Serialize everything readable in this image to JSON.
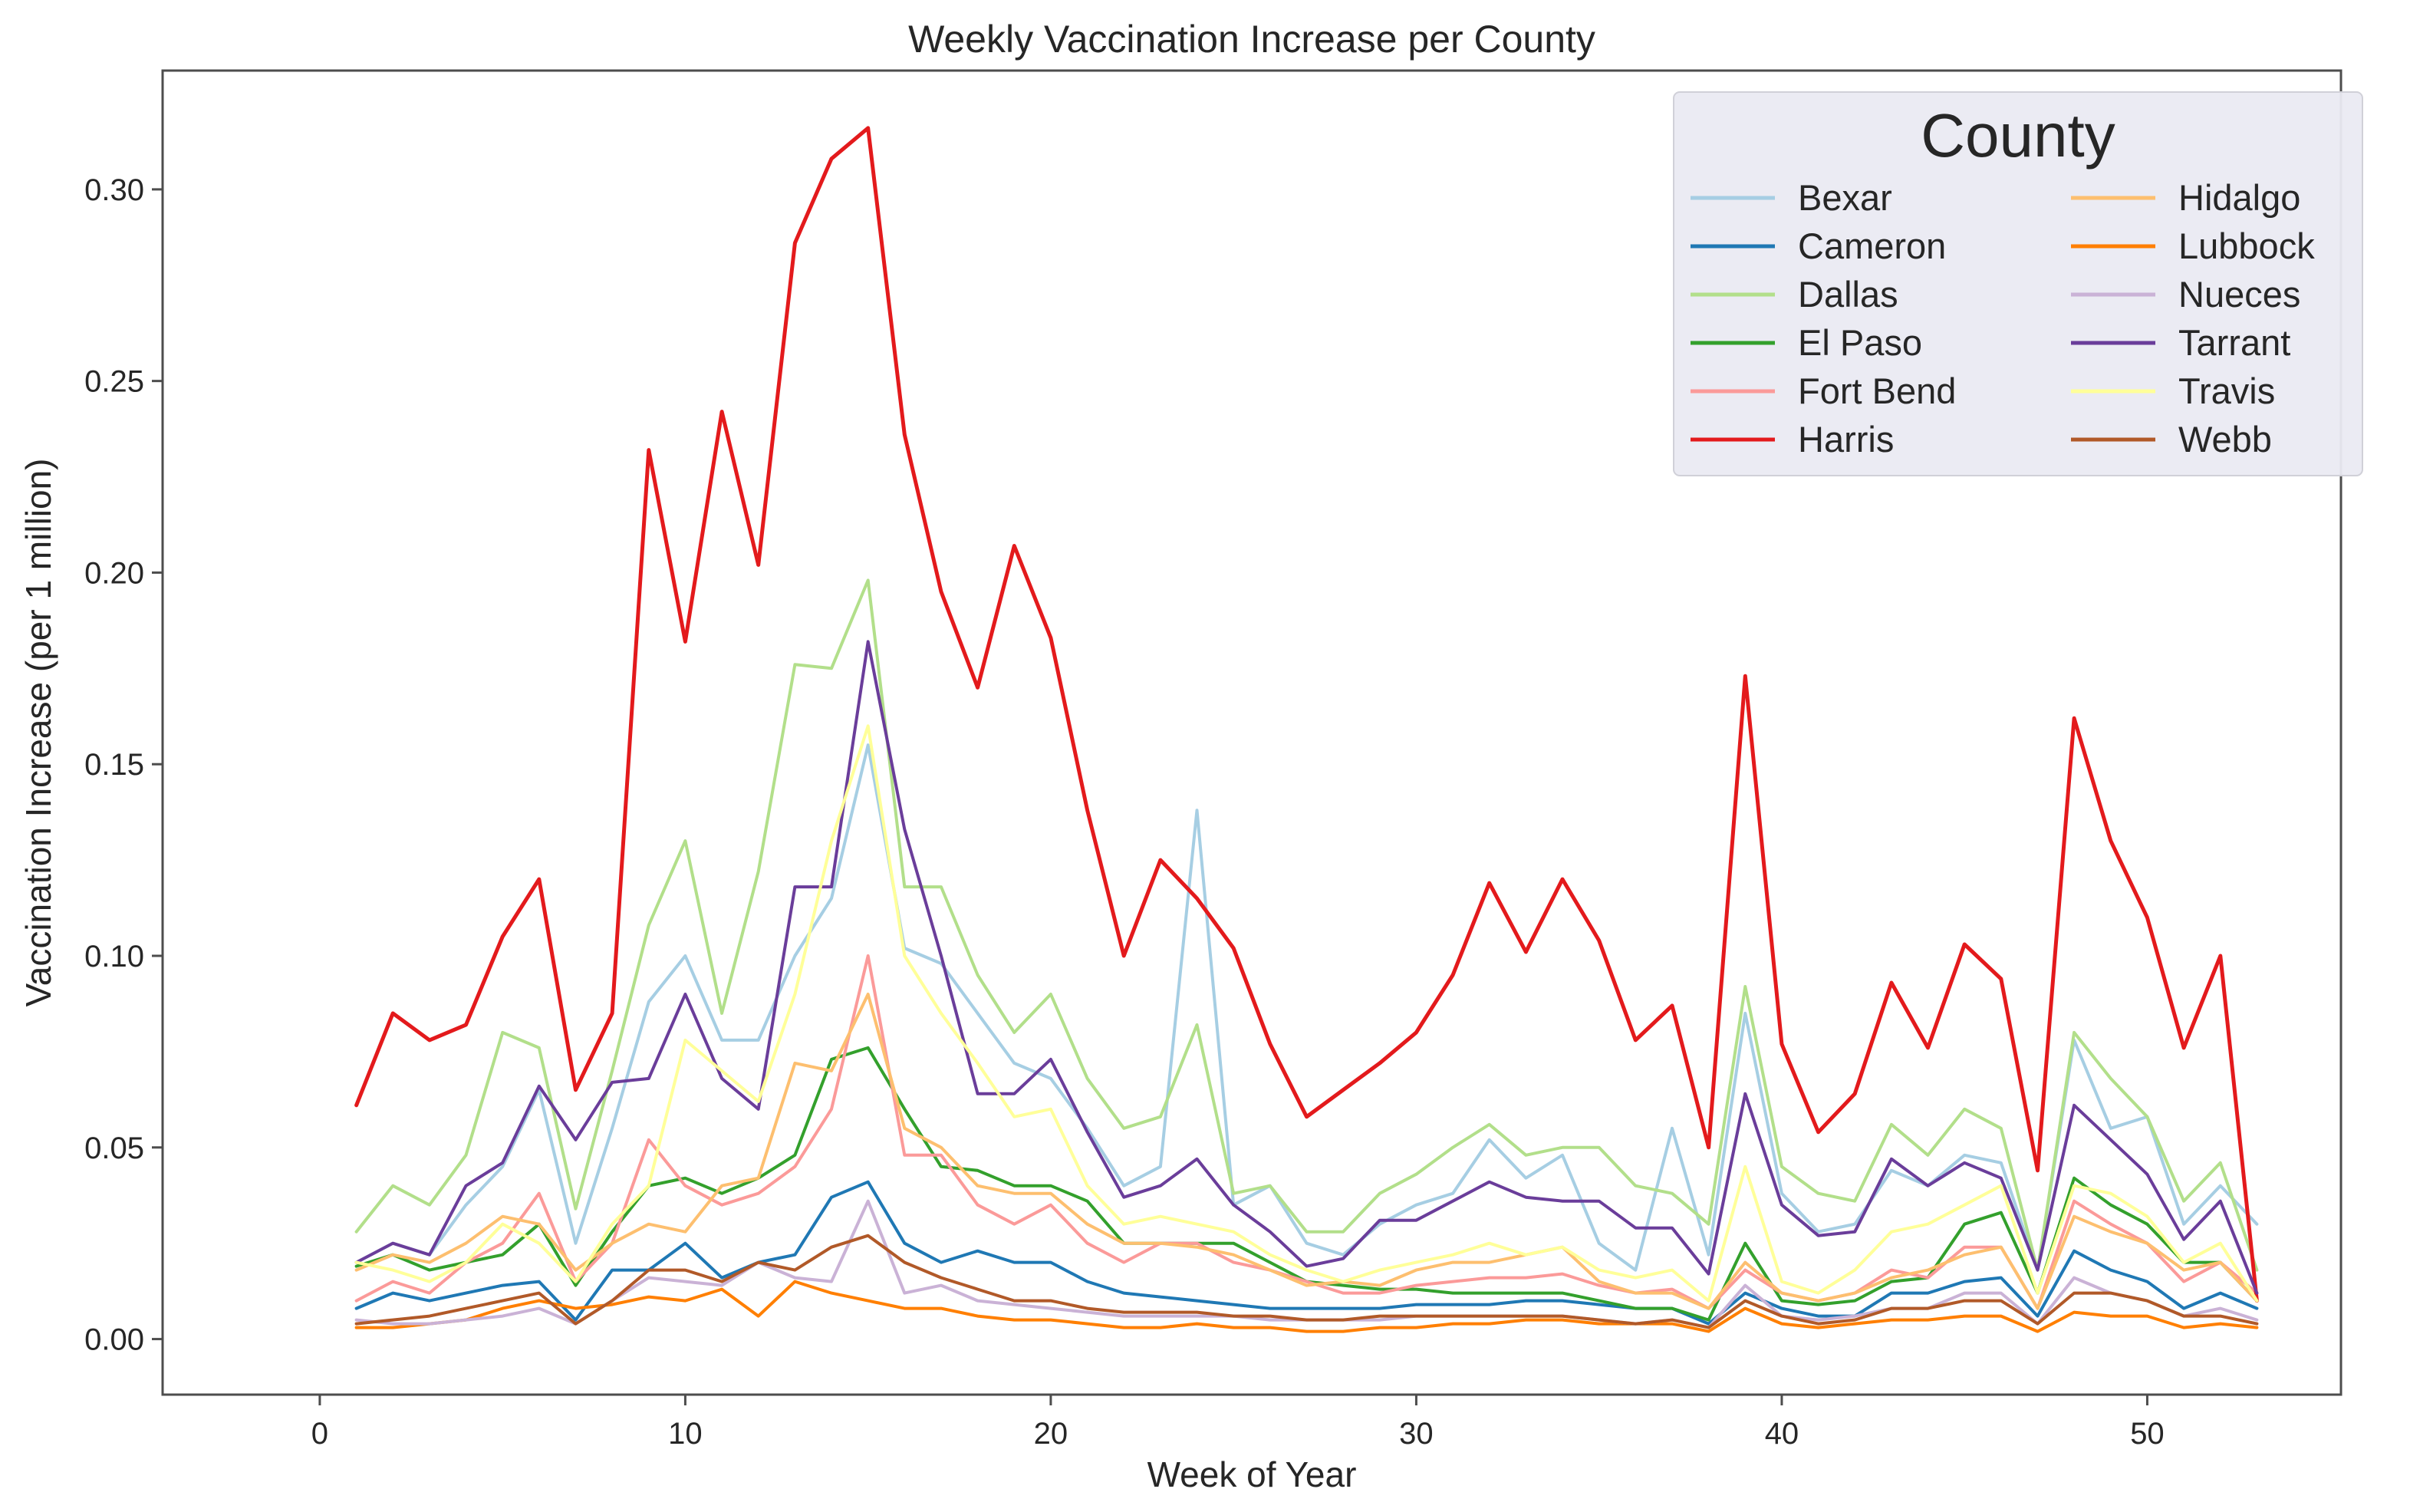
{
  "chart_data": {
    "type": "line",
    "title": "Weekly Vaccination Increase per County",
    "xlabel": "Week of Year",
    "ylabel": "Vaccination Increase (per 1 million)",
    "xlim": [
      -4.3,
      55.3
    ],
    "ylim": [
      -0.0145,
      0.331
    ],
    "xticks": [
      0,
      10,
      20,
      30,
      40,
      50
    ],
    "xtick_labels": [
      "0",
      "10",
      "20",
      "30",
      "40",
      "50"
    ],
    "yticks": [
      0,
      0.05,
      0.1,
      0.15,
      0.2,
      0.25,
      0.3
    ],
    "ytick_labels": [
      "0.00",
      "0.05",
      "0.10",
      "0.15",
      "0.20",
      "0.25",
      "0.30"
    ],
    "grid": false,
    "legend": {
      "title": "County",
      "position": "top-right",
      "columns": 2
    },
    "x": [
      1,
      2,
      3,
      4,
      5,
      6,
      7,
      8,
      9,
      10,
      11,
      12,
      13,
      14,
      15,
      16,
      17,
      18,
      19,
      20,
      21,
      22,
      23,
      24,
      25,
      26,
      27,
      28,
      29,
      30,
      31,
      32,
      33,
      34,
      35,
      36,
      37,
      38,
      39,
      40,
      41,
      42,
      43,
      44,
      45,
      46,
      47,
      48,
      49,
      50,
      51,
      52,
      53
    ],
    "series": [
      {
        "name": "Bexar",
        "color": "#a6cee3",
        "values": [
          0.02,
          0.025,
          0.022,
          0.035,
          0.045,
          0.065,
          0.025,
          0.055,
          0.088,
          0.1,
          0.078,
          0.078,
          0.1,
          0.115,
          0.155,
          0.102,
          0.098,
          0.085,
          0.072,
          0.068,
          0.055,
          0.04,
          0.045,
          0.138,
          0.035,
          0.04,
          0.025,
          0.022,
          0.03,
          0.035,
          0.038,
          0.052,
          0.042,
          0.048,
          0.025,
          0.018,
          0.055,
          0.022,
          0.085,
          0.038,
          0.028,
          0.03,
          0.044,
          0.04,
          0.048,
          0.046,
          0.018,
          0.078,
          0.055,
          0.058,
          0.03,
          0.04,
          0.03
        ]
      },
      {
        "name": "Cameron",
        "color": "#1f78b4",
        "values": [
          0.008,
          0.012,
          0.01,
          0.012,
          0.014,
          0.015,
          0.005,
          0.018,
          0.018,
          0.025,
          0.016,
          0.02,
          0.022,
          0.037,
          0.041,
          0.025,
          0.02,
          0.023,
          0.02,
          0.02,
          0.015,
          0.012,
          0.011,
          0.01,
          0.009,
          0.008,
          0.008,
          0.008,
          0.008,
          0.009,
          0.009,
          0.009,
          0.01,
          0.01,
          0.009,
          0.008,
          0.008,
          0.004,
          0.012,
          0.008,
          0.006,
          0.006,
          0.012,
          0.012,
          0.015,
          0.016,
          0.006,
          0.023,
          0.018,
          0.015,
          0.008,
          0.012,
          0.008
        ]
      },
      {
        "name": "Dallas",
        "color": "#b2df8a",
        "values": [
          0.028,
          0.04,
          0.035,
          0.048,
          0.08,
          0.076,
          0.034,
          0.07,
          0.108,
          0.13,
          0.085,
          0.122,
          0.176,
          0.175,
          0.198,
          0.118,
          0.118,
          0.095,
          0.08,
          0.09,
          0.068,
          0.055,
          0.058,
          0.082,
          0.038,
          0.04,
          0.028,
          0.028,
          0.038,
          0.043,
          0.05,
          0.056,
          0.048,
          0.05,
          0.05,
          0.04,
          0.038,
          0.03,
          0.092,
          0.045,
          0.038,
          0.036,
          0.056,
          0.048,
          0.06,
          0.055,
          0.018,
          0.08,
          0.068,
          0.058,
          0.036,
          0.046,
          0.018
        ]
      },
      {
        "name": "El Paso",
        "color": "#33a02c",
        "values": [
          0.019,
          0.022,
          0.018,
          0.02,
          0.022,
          0.03,
          0.014,
          0.028,
          0.04,
          0.042,
          0.038,
          0.042,
          0.048,
          0.073,
          0.076,
          0.06,
          0.045,
          0.044,
          0.04,
          0.04,
          0.036,
          0.025,
          0.025,
          0.025,
          0.025,
          0.02,
          0.015,
          0.014,
          0.013,
          0.013,
          0.012,
          0.012,
          0.012,
          0.012,
          0.01,
          0.008,
          0.008,
          0.005,
          0.025,
          0.01,
          0.009,
          0.01,
          0.015,
          0.016,
          0.03,
          0.033,
          0.012,
          0.042,
          0.035,
          0.03,
          0.02,
          0.02,
          0.01
        ]
      },
      {
        "name": "Fort Bend",
        "color": "#fb9a99",
        "values": [
          0.01,
          0.015,
          0.012,
          0.02,
          0.025,
          0.038,
          0.015,
          0.025,
          0.052,
          0.04,
          0.035,
          0.038,
          0.045,
          0.06,
          0.1,
          0.048,
          0.048,
          0.035,
          0.03,
          0.035,
          0.025,
          0.02,
          0.025,
          0.025,
          0.02,
          0.018,
          0.015,
          0.012,
          0.012,
          0.014,
          0.015,
          0.016,
          0.016,
          0.017,
          0.014,
          0.012,
          0.013,
          0.008,
          0.018,
          0.012,
          0.01,
          0.012,
          0.018,
          0.016,
          0.024,
          0.024,
          0.008,
          0.036,
          0.03,
          0.025,
          0.015,
          0.02,
          0.012
        ]
      },
      {
        "name": "Harris",
        "color": "#e31a1c",
        "values": [
          0.061,
          0.085,
          0.078,
          0.082,
          0.105,
          0.12,
          0.065,
          0.085,
          0.232,
          0.182,
          0.242,
          0.202,
          0.286,
          0.308,
          0.316,
          0.236,
          0.195,
          0.17,
          0.207,
          0.183,
          0.138,
          0.1,
          0.125,
          0.115,
          0.102,
          0.077,
          0.058,
          0.065,
          0.072,
          0.08,
          0.095,
          0.119,
          0.101,
          0.12,
          0.104,
          0.078,
          0.087,
          0.05,
          0.173,
          0.077,
          0.054,
          0.064,
          0.093,
          0.076,
          0.103,
          0.094,
          0.044,
          0.162,
          0.13,
          0.11,
          0.076,
          0.1,
          0.01
        ]
      },
      {
        "name": "Hidalgo",
        "color": "#fdbf6f",
        "values": [
          0.018,
          0.022,
          0.02,
          0.025,
          0.032,
          0.03,
          0.018,
          0.025,
          0.03,
          0.028,
          0.04,
          0.042,
          0.072,
          0.07,
          0.09,
          0.055,
          0.05,
          0.04,
          0.038,
          0.038,
          0.03,
          0.025,
          0.025,
          0.024,
          0.022,
          0.018,
          0.014,
          0.015,
          0.014,
          0.018,
          0.02,
          0.02,
          0.022,
          0.024,
          0.015,
          0.012,
          0.012,
          0.008,
          0.02,
          0.012,
          0.01,
          0.012,
          0.016,
          0.018,
          0.022,
          0.024,
          0.008,
          0.032,
          0.028,
          0.025,
          0.018,
          0.02,
          0.01
        ]
      },
      {
        "name": "Lubbock",
        "color": "#ff7f00",
        "values": [
          0.003,
          0.003,
          0.004,
          0.005,
          0.008,
          0.01,
          0.008,
          0.009,
          0.011,
          0.01,
          0.013,
          0.006,
          0.015,
          0.012,
          0.01,
          0.008,
          0.008,
          0.006,
          0.005,
          0.005,
          0.004,
          0.003,
          0.003,
          0.004,
          0.003,
          0.003,
          0.002,
          0.002,
          0.003,
          0.003,
          0.004,
          0.004,
          0.005,
          0.005,
          0.004,
          0.004,
          0.004,
          0.002,
          0.008,
          0.004,
          0.003,
          0.004,
          0.005,
          0.005,
          0.006,
          0.006,
          0.002,
          0.007,
          0.006,
          0.006,
          0.003,
          0.004,
          0.003
        ]
      },
      {
        "name": "Nueces",
        "color": "#cab2d6",
        "values": [
          0.005,
          0.004,
          0.004,
          0.005,
          0.006,
          0.008,
          0.004,
          0.01,
          0.016,
          0.015,
          0.014,
          0.02,
          0.016,
          0.015,
          0.036,
          0.012,
          0.014,
          0.01,
          0.009,
          0.008,
          0.007,
          0.006,
          0.006,
          0.006,
          0.006,
          0.005,
          0.005,
          0.005,
          0.005,
          0.006,
          0.006,
          0.006,
          0.006,
          0.006,
          0.005,
          0.004,
          0.005,
          0.003,
          0.014,
          0.006,
          0.005,
          0.006,
          0.008,
          0.008,
          0.012,
          0.012,
          0.004,
          0.016,
          0.012,
          0.01,
          0.006,
          0.008,
          0.005
        ]
      },
      {
        "name": "Tarrant",
        "color": "#6a3d9a",
        "values": [
          0.02,
          0.025,
          0.022,
          0.04,
          0.046,
          0.066,
          0.052,
          0.067,
          0.068,
          0.09,
          0.068,
          0.06,
          0.118,
          0.118,
          0.182,
          0.133,
          0.1,
          0.064,
          0.064,
          0.073,
          0.054,
          0.037,
          0.04,
          0.047,
          0.035,
          0.028,
          0.019,
          0.021,
          0.031,
          0.031,
          0.036,
          0.041,
          0.037,
          0.036,
          0.036,
          0.029,
          0.029,
          0.017,
          0.064,
          0.035,
          0.027,
          0.028,
          0.047,
          0.04,
          0.046,
          0.042,
          0.018,
          0.061,
          0.052,
          0.043,
          0.026,
          0.036,
          0.012
        ]
      },
      {
        "name": "Travis",
        "color": "#ffff99",
        "values": [
          0.02,
          0.018,
          0.015,
          0.02,
          0.03,
          0.025,
          0.015,
          0.03,
          0.04,
          0.078,
          0.07,
          0.062,
          0.09,
          0.13,
          0.16,
          0.1,
          0.085,
          0.072,
          0.058,
          0.06,
          0.04,
          0.03,
          0.032,
          0.03,
          0.028,
          0.022,
          0.018,
          0.015,
          0.018,
          0.02,
          0.022,
          0.025,
          0.022,
          0.024,
          0.018,
          0.016,
          0.018,
          0.01,
          0.045,
          0.015,
          0.012,
          0.018,
          0.028,
          0.03,
          0.035,
          0.04,
          0.012,
          0.04,
          0.038,
          0.032,
          0.02,
          0.025,
          0.01
        ]
      },
      {
        "name": "Webb",
        "color": "#b15928",
        "values": [
          0.004,
          0.005,
          0.006,
          0.008,
          0.01,
          0.012,
          0.004,
          0.01,
          0.018,
          0.018,
          0.015,
          0.02,
          0.018,
          0.024,
          0.027,
          0.02,
          0.016,
          0.013,
          0.01,
          0.01,
          0.008,
          0.007,
          0.007,
          0.007,
          0.006,
          0.006,
          0.005,
          0.005,
          0.006,
          0.006,
          0.006,
          0.006,
          0.006,
          0.006,
          0.005,
          0.004,
          0.005,
          0.003,
          0.01,
          0.006,
          0.004,
          0.005,
          0.008,
          0.008,
          0.01,
          0.01,
          0.004,
          0.012,
          0.012,
          0.01,
          0.006,
          0.006,
          0.004
        ]
      }
    ]
  }
}
